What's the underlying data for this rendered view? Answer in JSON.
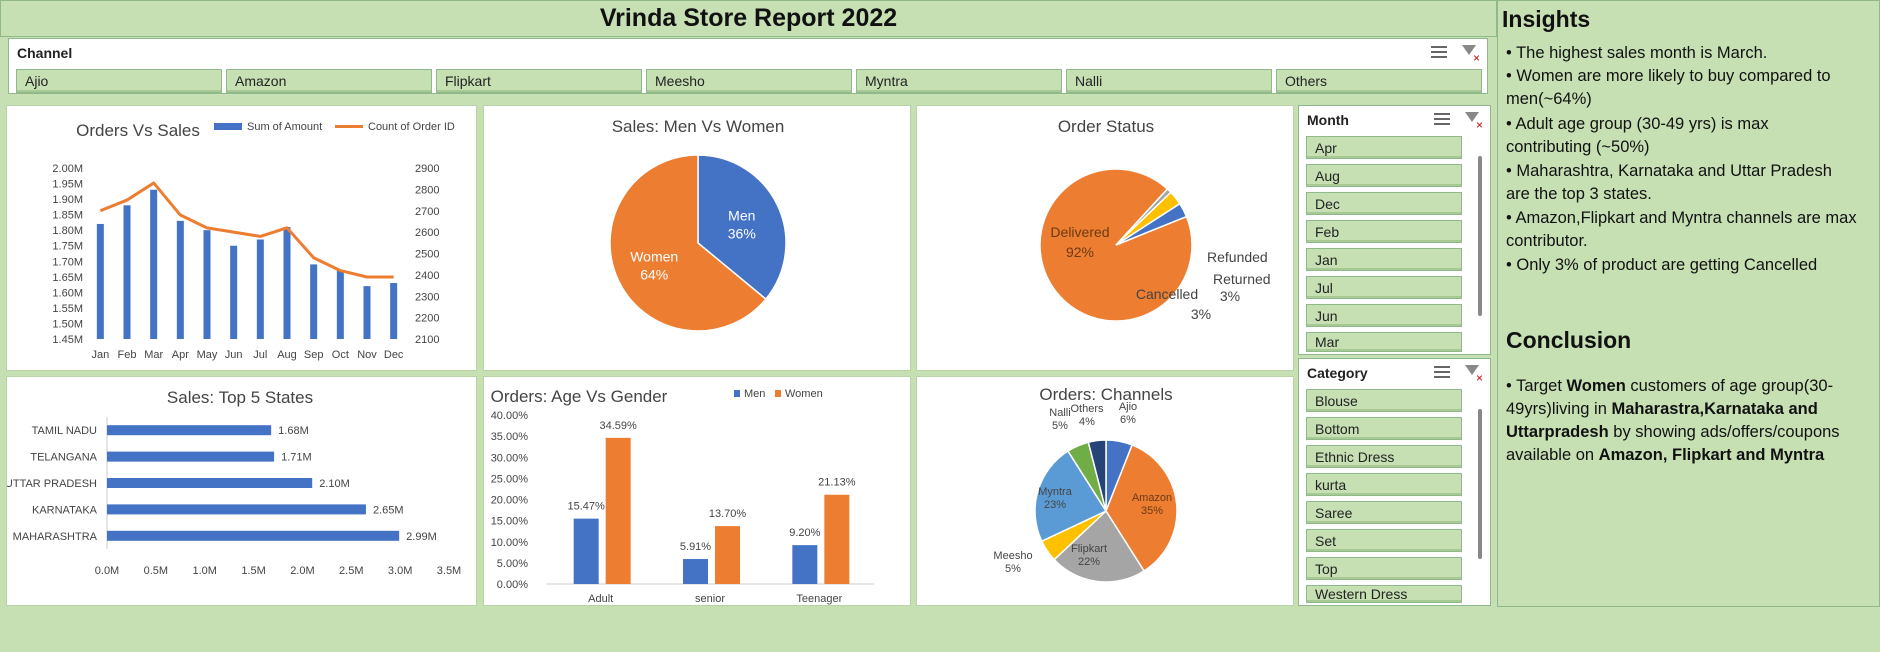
{
  "report_title": "Vrinda Store Report 2022",
  "channel_slicer": {
    "header": "Channel",
    "items": [
      "Ajio",
      "Amazon",
      "Flipkart",
      "Meesho",
      "Myntra",
      "Nalli",
      "Others"
    ]
  },
  "month_slicer": {
    "header": "Month",
    "items": [
      "Apr",
      "Aug",
      "Dec",
      "Feb",
      "Jan",
      "Jul",
      "Jun",
      "Mar"
    ]
  },
  "category_slicer": {
    "header": "Category",
    "items": [
      "Blouse",
      "Bottom",
      "Ethnic Dress",
      "kurta",
      "Saree",
      "Set",
      "Top",
      "Western Dress"
    ]
  },
  "insights": {
    "heading": "Insights",
    "points": [
      "• The highest sales month is March.",
      "•  Women are more likely to buy compared to",
      "men(~64%)",
      "• Adult age group (30-49 yrs) is max",
      "contributing (~50%)",
      "• Maharashtra, Karnataka and Uttar Pradesh",
      "are the top 3 states.",
      "• Amazon,Flipkart and Myntra channels are max",
      "contributor.",
      "•  Only 3% of product are getting Cancelled"
    ]
  },
  "conclusion": {
    "heading": "Conclusion",
    "parts": [
      {
        "text": "• Target ",
        "bold": false
      },
      {
        "text": "Women",
        "bold": true
      },
      {
        "text": " customers of age group(30-49yrs)living in ",
        "bold": false
      },
      {
        "text": "Maharastra,Karnataka and Uttarpradesh",
        "bold": true
      },
      {
        "text": " by showing ads/offers/coupons available on ",
        "bold": false
      },
      {
        "text": "Amazon, Flipkart and Myntra",
        "bold": true
      }
    ]
  },
  "colors": {
    "blue": "#4472c4",
    "orange": "#ed7d31",
    "gray": "#a5a5a5",
    "yellow": "#ffc000",
    "lightblue": "#5b9bd5",
    "green": "#70ad47",
    "navy": "#264478"
  },
  "chart_data": [
    {
      "id": "orders_vs_sales",
      "type": "bar",
      "title": "Orders Vs Sales",
      "categories": [
        "Jan",
        "Feb",
        "Mar",
        "Apr",
        "May",
        "Jun",
        "Jul",
        "Aug",
        "Sep",
        "Oct",
        "Nov",
        "Dec"
      ],
      "series": [
        {
          "name": "Sum of Amount",
          "type": "bar",
          "axis": "left",
          "values": [
            1.82,
            1.88,
            1.93,
            1.83,
            1.8,
            1.75,
            1.77,
            1.81,
            1.69,
            1.67,
            1.62,
            1.63
          ]
        },
        {
          "name": "Count of Order ID",
          "type": "line",
          "axis": "right",
          "values": [
            2700,
            2750,
            2830,
            2680,
            2620,
            2600,
            2580,
            2620,
            2480,
            2420,
            2390,
            2390
          ]
        }
      ],
      "y_left": {
        "min": 1.45,
        "max": 2.0,
        "ticks": [
          "1.45M",
          "1.50M",
          "1.55M",
          "1.60M",
          "1.65M",
          "1.70M",
          "1.75M",
          "1.80M",
          "1.85M",
          "1.90M",
          "1.95M",
          "2.00M"
        ]
      },
      "y_right": {
        "min": 2100,
        "max": 2900,
        "ticks": [
          "2100",
          "2200",
          "2300",
          "2400",
          "2500",
          "2600",
          "2700",
          "2800",
          "2900"
        ]
      },
      "legend": "top"
    },
    {
      "id": "men_vs_women",
      "type": "pie",
      "title": "Sales: Men Vs Women",
      "slices": [
        {
          "label": "Men",
          "value": 36,
          "display": "36%"
        },
        {
          "label": "Women",
          "value": 64,
          "display": "64%"
        }
      ]
    },
    {
      "id": "order_status",
      "type": "pie",
      "title": "Order Status",
      "slices": [
        {
          "label": "Delivered",
          "value": 92,
          "display": "92%"
        },
        {
          "label": "Refunded",
          "value": 1,
          "display": ""
        },
        {
          "label": "Returned",
          "value": 3,
          "display": "3%"
        },
        {
          "label": "Cancelled",
          "value": 3,
          "display": "3%"
        }
      ]
    },
    {
      "id": "top5_states",
      "type": "bar",
      "orientation": "horizontal",
      "title": "Sales: Top 5 States",
      "categories": [
        "TAMIL NADU",
        "TELANGANA",
        "UTTAR PRADESH",
        "KARNATAKA",
        "MAHARASHTRA"
      ],
      "values": [
        1.68,
        1.71,
        2.1,
        2.65,
        2.99
      ],
      "labels": [
        "1.68M",
        "1.71M",
        "2.10M",
        "2.65M",
        "2.99M"
      ],
      "xlim": [
        0,
        3.5
      ],
      "x_ticks": [
        "0.0M",
        "0.5M",
        "1.0M",
        "1.5M",
        "2.0M",
        "2.5M",
        "3.0M",
        "3.5M"
      ]
    },
    {
      "id": "age_vs_gender",
      "type": "bar",
      "title": "Orders: Age Vs Gender",
      "categories": [
        "Adult",
        "senior",
        "Teenager"
      ],
      "series": [
        {
          "name": "Men",
          "values": [
            15.47,
            5.91,
            9.2
          ],
          "labels": [
            "15.47%",
            "5.91%",
            "9.20%"
          ]
        },
        {
          "name": "Women",
          "values": [
            34.59,
            13.7,
            21.13
          ],
          "labels": [
            "34.59%",
            "13.70%",
            "21.13%"
          ]
        }
      ],
      "ylim": [
        0,
        40
      ],
      "y_ticks": [
        "0.00%",
        "5.00%",
        "10.00%",
        "15.00%",
        "20.00%",
        "25.00%",
        "30.00%",
        "35.00%",
        "40.00%"
      ],
      "legend": "top-right"
    },
    {
      "id": "channels",
      "type": "pie",
      "title": "Orders: Channels",
      "slices": [
        {
          "label": "Ajio",
          "value": 6,
          "display": "6%"
        },
        {
          "label": "Amazon",
          "value": 35,
          "display": "35%"
        },
        {
          "label": "Flipkart",
          "value": 22,
          "display": "22%"
        },
        {
          "label": "Meesho",
          "value": 5,
          "display": "5%"
        },
        {
          "label": "Myntra",
          "value": 23,
          "display": "23%"
        },
        {
          "label": "Nalli",
          "value": 5,
          "display": "5%"
        },
        {
          "label": "Others",
          "value": 4,
          "display": "4%"
        }
      ]
    }
  ]
}
